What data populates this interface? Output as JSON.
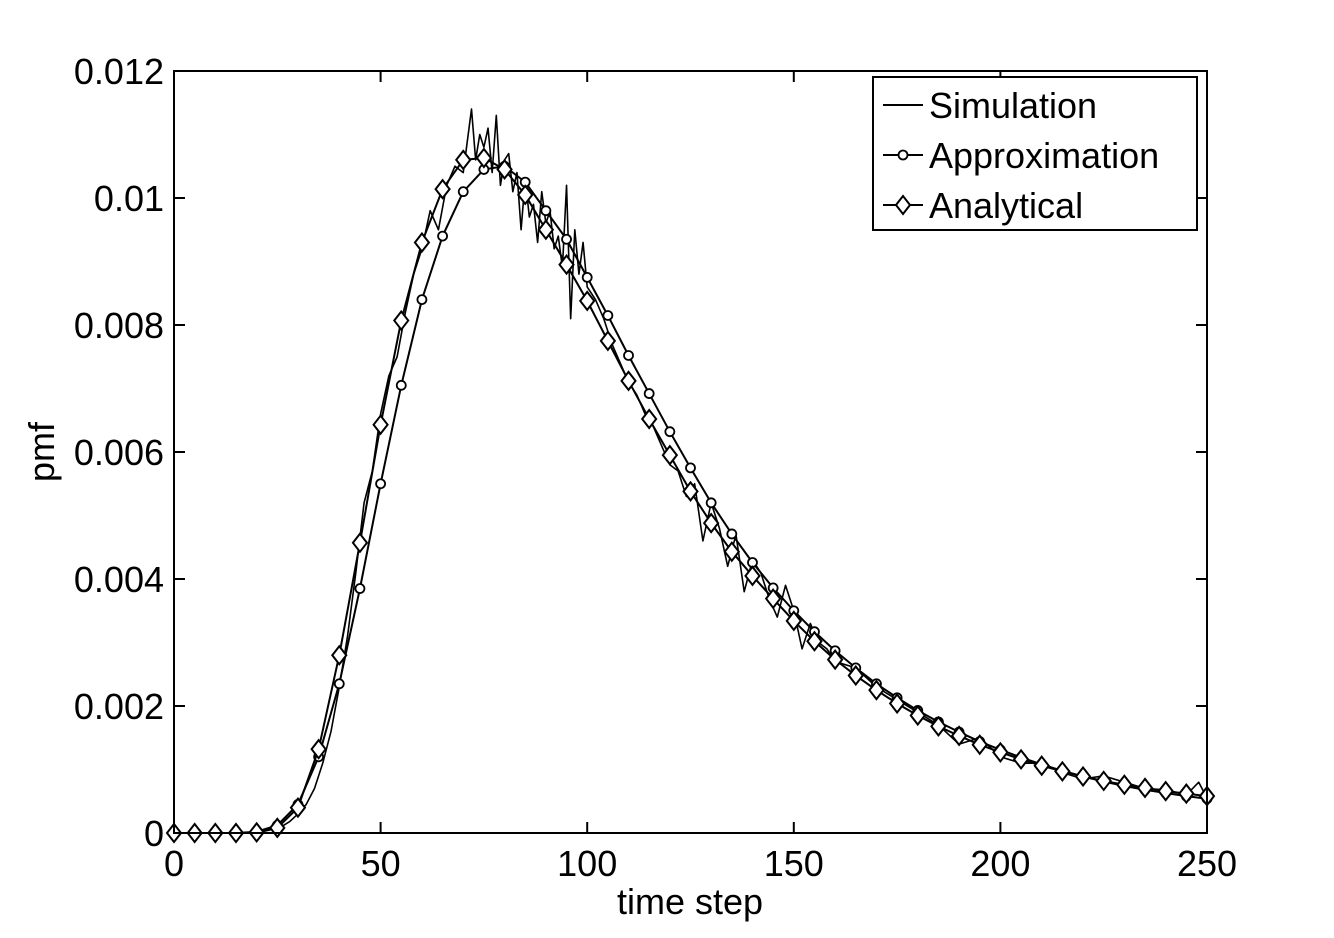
{
  "chart_data": {
    "type": "line",
    "title": "",
    "xlabel": "time step",
    "ylabel": "pmf",
    "xlim": [
      0,
      250
    ],
    "ylim": [
      0,
      0.012
    ],
    "xticks": [
      0,
      50,
      100,
      150,
      200,
      250
    ],
    "xtick_labels": [
      "0",
      "50",
      "100",
      "150",
      "200",
      "250"
    ],
    "yticks": [
      0,
      0.002,
      0.004,
      0.006,
      0.008,
      0.01,
      0.012
    ],
    "ytick_labels": [
      "0",
      "0.002",
      "0.004",
      "0.006",
      "0.008",
      "0.01",
      "0.012"
    ],
    "grid": false,
    "legend_position": "top-right",
    "series": [
      {
        "name": "Simulation",
        "marker": "none",
        "x": [
          0,
          5,
          10,
          15,
          20,
          22,
          24,
          26,
          28,
          30,
          32,
          34,
          36,
          38,
          40,
          42,
          44,
          46,
          48,
          50,
          52,
          54,
          56,
          58,
          60,
          62,
          64,
          66,
          68,
          70,
          71,
          72,
          73,
          74,
          75,
          76,
          77,
          78,
          79,
          80,
          81,
          82,
          83,
          84,
          85,
          86,
          87,
          88,
          89,
          90,
          91,
          92,
          93,
          94,
          95,
          96,
          97,
          98,
          99,
          100,
          102,
          104,
          106,
          108,
          110,
          112,
          114,
          116,
          118,
          120,
          122,
          124,
          126,
          128,
          130,
          132,
          134,
          136,
          138,
          140,
          142,
          144,
          146,
          148,
          150,
          152,
          154,
          156,
          158,
          160,
          165,
          170,
          175,
          180,
          185,
          190,
          195,
          200,
          205,
          210,
          215,
          220,
          225,
          230,
          235,
          240,
          245,
          248,
          250
        ],
        "values": [
          0,
          0,
          0,
          0,
          1e-05,
          3e-05,
          6e-05,
          0.0001,
          0.00018,
          0.0003,
          0.00045,
          0.0007,
          0.0011,
          0.0016,
          0.0023,
          0.0031,
          0.0041,
          0.0052,
          0.0057,
          0.0066,
          0.0072,
          0.0075,
          0.0082,
          0.0088,
          0.0092,
          0.0098,
          0.0095,
          0.0102,
          0.0105,
          0.0104,
          0.0109,
          0.0114,
          0.0106,
          0.011,
          0.0108,
          0.0111,
          0.0104,
          0.0113,
          0.0102,
          0.0106,
          0.0107,
          0.0101,
          0.0104,
          0.0095,
          0.0103,
          0.0097,
          0.0099,
          0.0093,
          0.0101,
          0.0096,
          0.0098,
          0.0092,
          0.0094,
          0.0089,
          0.0102,
          0.0081,
          0.0095,
          0.0088,
          0.0093,
          0.0086,
          0.0084,
          0.0081,
          0.0077,
          0.0074,
          0.0071,
          0.0069,
          0.0066,
          0.0064,
          0.0061,
          0.0058,
          0.0057,
          0.0053,
          0.0055,
          0.0046,
          0.0052,
          0.0048,
          0.0042,
          0.0047,
          0.0038,
          0.0043,
          0.0041,
          0.0037,
          0.0034,
          0.0039,
          0.0035,
          0.0029,
          0.0033,
          0.003,
          0.0029,
          0.0027,
          0.0026,
          0.0023,
          0.0021,
          0.0019,
          0.0017,
          0.0014,
          0.0015,
          0.0012,
          0.0011,
          0.0011,
          0.00095,
          0.00085,
          0.0009,
          0.0008,
          0.0007,
          0.00068,
          0.0006,
          0.0008,
          0.00055
        ]
      },
      {
        "name": "Approximation",
        "marker": "circle",
        "x": [
          0,
          5,
          10,
          15,
          20,
          25,
          30,
          35,
          40,
          45,
          50,
          55,
          60,
          65,
          70,
          75,
          80,
          85,
          90,
          95,
          100,
          105,
          110,
          115,
          120,
          125,
          130,
          135,
          140,
          145,
          150,
          155,
          160,
          165,
          170,
          175,
          180,
          185,
          190,
          195,
          200,
          205,
          210,
          215,
          220,
          225,
          230,
          235,
          240,
          245,
          250
        ],
        "values": [
          0,
          0,
          0,
          0,
          2e-05,
          0.00012,
          0.00045,
          0.0012,
          0.00235,
          0.00385,
          0.0055,
          0.00705,
          0.0084,
          0.0094,
          0.0101,
          0.01045,
          0.0105,
          0.01025,
          0.0098,
          0.00935,
          0.00875,
          0.00815,
          0.00752,
          0.00692,
          0.00632,
          0.00575,
          0.0052,
          0.00471,
          0.00426,
          0.00386,
          0.0035,
          0.00317,
          0.00287,
          0.0026,
          0.00235,
          0.00213,
          0.00193,
          0.00175,
          0.00159,
          0.00144,
          0.00131,
          0.00119,
          0.00108,
          0.00098,
          0.00089,
          0.00081,
          0.00074,
          0.00068,
          0.00063,
          0.00058,
          0.00054
        ]
      },
      {
        "name": "Analytical",
        "marker": "diamond",
        "x": [
          0,
          5,
          10,
          15,
          20,
          25,
          30,
          35,
          40,
          45,
          50,
          55,
          60,
          65,
          70,
          75,
          80,
          85,
          90,
          95,
          100,
          105,
          110,
          115,
          120,
          125,
          130,
          135,
          140,
          145,
          150,
          155,
          160,
          165,
          170,
          175,
          180,
          185,
          190,
          195,
          200,
          205,
          210,
          215,
          220,
          225,
          230,
          235,
          240,
          245,
          250
        ],
        "values": [
          0,
          0,
          0,
          0,
          1e-05,
          8e-05,
          0.0004,
          0.00132,
          0.0028,
          0.00457,
          0.00643,
          0.00807,
          0.0093,
          0.01014,
          0.0106,
          0.01063,
          0.01045,
          0.01005,
          0.0095,
          0.00895,
          0.00838,
          0.00775,
          0.00712,
          0.00652,
          0.00595,
          0.00538,
          0.00488,
          0.00443,
          0.00405,
          0.00369,
          0.00334,
          0.00302,
          0.00273,
          0.00248,
          0.00225,
          0.00204,
          0.00185,
          0.00168,
          0.00153,
          0.00139,
          0.00127,
          0.00116,
          0.00106,
          0.00097,
          0.00089,
          0.00082,
          0.00076,
          0.00071,
          0.00066,
          0.00062,
          0.00058
        ]
      }
    ]
  }
}
